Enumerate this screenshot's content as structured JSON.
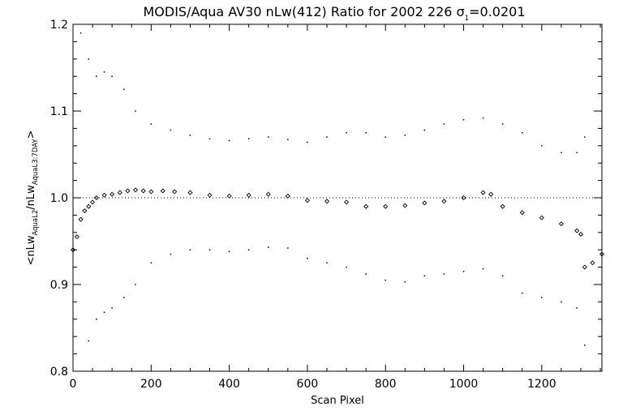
{
  "chart_data": {
    "type": "scatter",
    "title": "MODIS/Aqua AV30 nLw(412) Ratio for 2002 226 σ",
    "title_sigma_subscript": "1",
    "title_sigma_value": "=0.0201",
    "xlabel": "Scan Pixel",
    "ylabel_parts": {
      "open": "<nLw",
      "sub1": "AquaL2",
      "slash": "/nLw",
      "sub2": "AquaL3:7DAY",
      "close": ">"
    },
    "xlim": [
      0,
      1354
    ],
    "ylim": [
      0.8,
      1.2
    ],
    "x_ticks": [
      0,
      200,
      400,
      600,
      800,
      1000,
      1200
    ],
    "x_tick_labels": [
      "0",
      "200",
      "400",
      "600",
      "800",
      "1000",
      "1200"
    ],
    "y_ticks": [
      0.8,
      0.9,
      1.0,
      1.1,
      1.2
    ],
    "y_tick_labels": [
      "0.8",
      "0.9",
      "1.0",
      "1.1",
      "1.2"
    ],
    "reference_line": {
      "y": 1.0,
      "style": "dotted"
    },
    "series": [
      {
        "role": "mean ratio",
        "marker": "open-diamond",
        "x": [
          0,
          10,
          20,
          30,
          40,
          50,
          60,
          80,
          100,
          120,
          140,
          160,
          180,
          200,
          230,
          260,
          300,
          350,
          400,
          450,
          500,
          550,
          600,
          650,
          700,
          750,
          800,
          850,
          900,
          950,
          1000,
          1050,
          1070,
          1100,
          1150,
          1200,
          1250,
          1290,
          1300,
          1310,
          1330,
          1354
        ],
        "y": [
          0.94,
          0.955,
          0.975,
          0.985,
          0.99,
          0.995,
          1.0,
          1.003,
          1.004,
          1.006,
          1.008,
          1.009,
          1.008,
          1.007,
          1.008,
          1.007,
          1.006,
          1.003,
          1.002,
          1.003,
          1.004,
          1.002,
          0.997,
          0.996,
          0.995,
          0.99,
          0.99,
          0.991,
          0.994,
          0.996,
          1.0,
          1.006,
          1.004,
          0.99,
          0.983,
          0.977,
          0.97,
          0.962,
          0.958,
          0.92,
          0.925,
          0.935
        ]
      },
      {
        "role": "mean + sigma",
        "marker": "dot",
        "x": [
          20,
          40,
          60,
          80,
          100,
          130,
          160,
          200,
          250,
          300,
          350,
          400,
          450,
          500,
          550,
          600,
          650,
          700,
          750,
          800,
          850,
          900,
          950,
          1000,
          1050,
          1100,
          1150,
          1200,
          1250,
          1290,
          1310
        ],
        "y": [
          1.19,
          1.16,
          1.14,
          1.145,
          1.14,
          1.125,
          1.1,
          1.085,
          1.078,
          1.072,
          1.068,
          1.066,
          1.068,
          1.07,
          1.067,
          1.064,
          1.07,
          1.075,
          1.075,
          1.07,
          1.072,
          1.078,
          1.085,
          1.09,
          1.092,
          1.085,
          1.075,
          1.06,
          1.052,
          1.052,
          1.07
        ]
      },
      {
        "role": "mean - sigma",
        "marker": "dot",
        "x": [
          40,
          60,
          80,
          100,
          130,
          160,
          200,
          250,
          300,
          350,
          400,
          450,
          500,
          550,
          600,
          650,
          700,
          750,
          800,
          850,
          900,
          950,
          1000,
          1050,
          1100,
          1150,
          1200,
          1250,
          1290,
          1310
        ],
        "y": [
          0.835,
          0.86,
          0.868,
          0.873,
          0.885,
          0.9,
          0.925,
          0.935,
          0.94,
          0.94,
          0.938,
          0.94,
          0.943,
          0.942,
          0.93,
          0.925,
          0.92,
          0.912,
          0.905,
          0.903,
          0.91,
          0.912,
          0.915,
          0.918,
          0.91,
          0.89,
          0.885,
          0.88,
          0.873,
          0.83
        ]
      }
    ]
  }
}
